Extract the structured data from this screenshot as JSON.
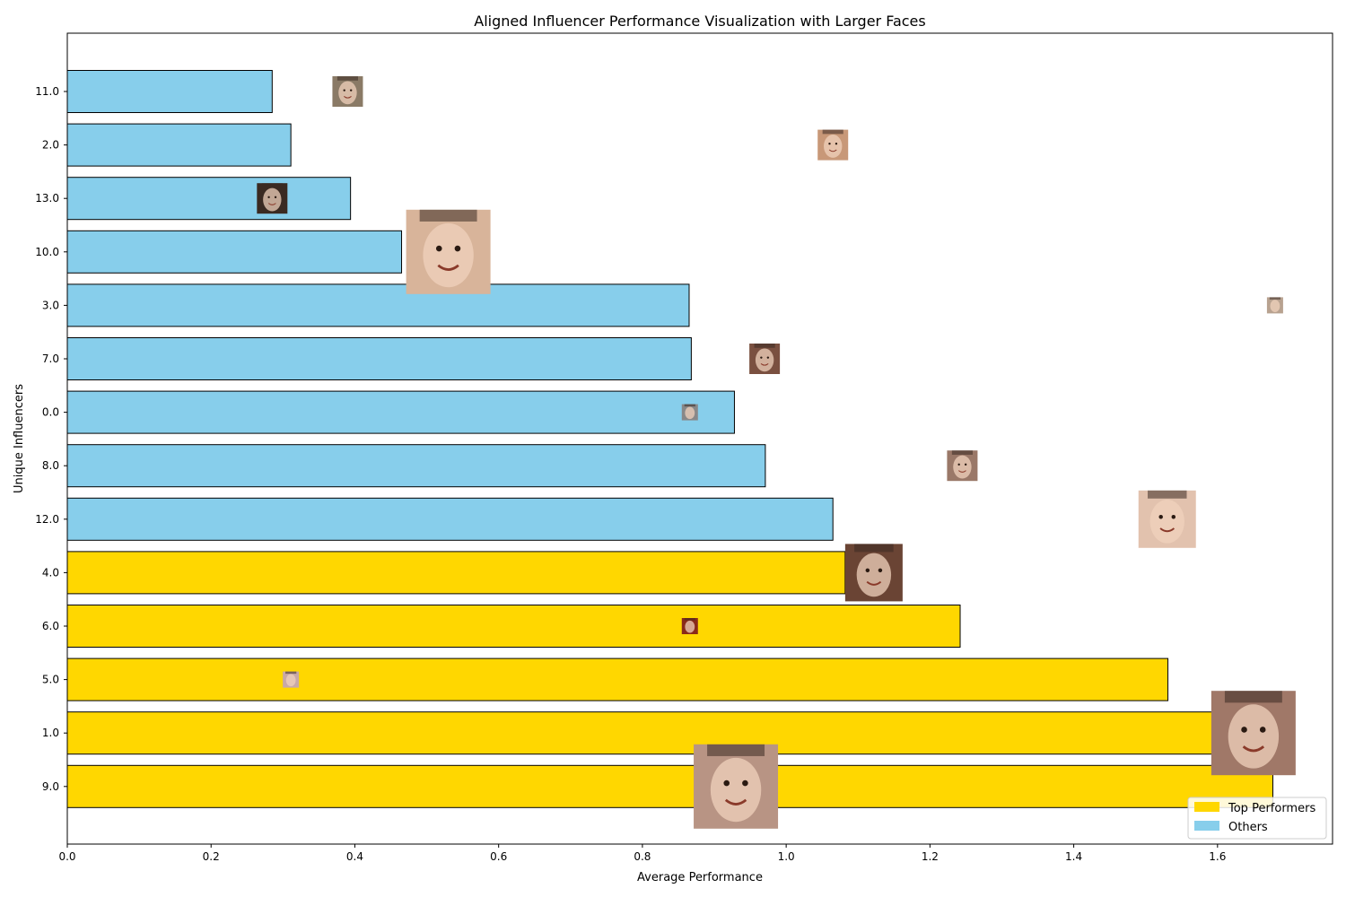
{
  "chart_data": {
    "type": "bar",
    "orientation": "horizontal",
    "title": "Aligned Influencer Performance Visualization with Larger Faces",
    "xlabel": "Average Performance",
    "ylabel": "Unique Influencers",
    "xlim": [
      0,
      1.76
    ],
    "xticks": [
      "0.0",
      "0.2",
      "0.4",
      "0.6",
      "0.8",
      "1.0",
      "1.2",
      "1.4",
      "1.6"
    ],
    "grid": false,
    "legend": {
      "placement": "lower-right",
      "entries": [
        {
          "label": "Top Performers",
          "color": "#ffd700"
        },
        {
          "label": "Others",
          "color": "#87ceeb"
        }
      ]
    },
    "categories": [
      "11.0",
      "2.0",
      "13.0",
      "10.0",
      "3.0",
      "7.0",
      "0.0",
      "8.0",
      "12.0",
      "4.0",
      "6.0",
      "5.0",
      "1.0",
      "9.0"
    ],
    "values": [
      0.285,
      0.311,
      0.394,
      0.465,
      0.865,
      0.868,
      0.928,
      0.971,
      1.065,
      1.082,
      1.242,
      1.531,
      1.595,
      1.677
    ],
    "groups": [
      "Others",
      "Others",
      "Others",
      "Others",
      "Others",
      "Others",
      "Others",
      "Others",
      "Others",
      "Top Performers",
      "Top Performers",
      "Top Performers",
      "Top Performers",
      "Top Performers"
    ],
    "face_markers": [
      {
        "category": "11.0",
        "x": 0.39,
        "size": "small",
        "tone": "#8a7a66"
      },
      {
        "category": "2.0",
        "x": 1.065,
        "size": "small",
        "tone": "#c89878"
      },
      {
        "category": "13.0",
        "x": 0.285,
        "size": "small",
        "tone": "#3a2a22"
      },
      {
        "category": "10.0",
        "x": 0.53,
        "size": "large",
        "tone": "#d8b49a"
      },
      {
        "category": "3.0",
        "x": 1.68,
        "size": "tiny",
        "tone": "#b8a290"
      },
      {
        "category": "7.0",
        "x": 0.97,
        "size": "small",
        "tone": "#7a5040"
      },
      {
        "category": "0.0",
        "x": 0.866,
        "size": "tiny",
        "tone": "#888888"
      },
      {
        "category": "8.0",
        "x": 1.245,
        "size": "small",
        "tone": "#9a7868"
      },
      {
        "category": "12.0",
        "x": 1.53,
        "size": "medium",
        "tone": "#e2c2ae"
      },
      {
        "category": "4.0",
        "x": 1.122,
        "size": "medium",
        "tone": "#6a4434"
      },
      {
        "category": "6.0",
        "x": 0.866,
        "size": "tiny",
        "tone": "#8a2a1a"
      },
      {
        "category": "5.0",
        "x": 0.311,
        "size": "tiny",
        "tone": "#c8a8a8"
      },
      {
        "category": "1.0",
        "x": 1.65,
        "size": "large",
        "tone": "#a07868"
      },
      {
        "category": "9.0",
        "x": 0.93,
        "size": "large",
        "tone": "#b89484"
      }
    ]
  }
}
